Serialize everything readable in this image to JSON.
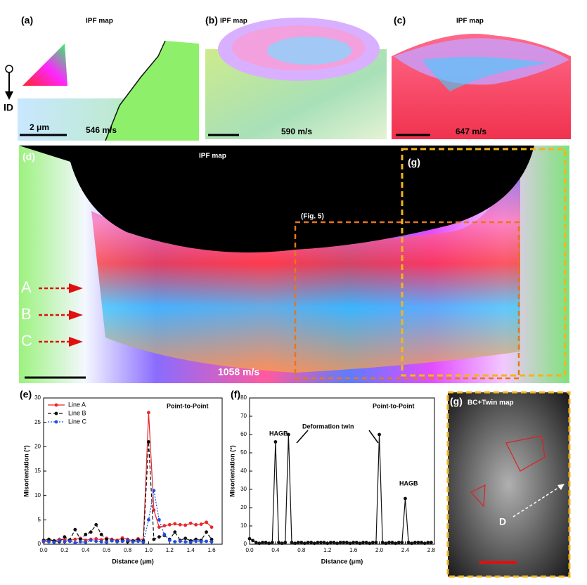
{
  "images": [
    {
      "label": "(a)",
      "title": "IPF map",
      "speed": "546 m/s",
      "scale": "2 μm",
      "direction": "ID"
    },
    {
      "label": "(b)",
      "title": "IPF map",
      "speed": "590 m/s"
    },
    {
      "label": "(c)",
      "title": "IPF map",
      "speed": "647 m/s"
    },
    {
      "label": "(d)",
      "title": "IPF map",
      "speed": "1058 m/s",
      "inset_g": "(g)",
      "inset_fig": "(Fig. 5)",
      "lines": [
        "A",
        "B",
        "C"
      ]
    },
    {
      "label": "(g)",
      "title": "BC+Twin map",
      "line": "D"
    }
  ],
  "chart_data": [
    {
      "type": "line",
      "panel": "(e)",
      "xlabel": "Distance (μm)",
      "ylabel": "Misorientation (°)",
      "annotations": [
        "Point-to-Point"
      ],
      "xlim": [
        0,
        1.7
      ],
      "ylim": [
        0,
        30
      ],
      "xticks": [
        {
          "value": 0,
          "label": "0.0"
        },
        {
          "value": 0.2,
          "label": "0.2"
        },
        {
          "value": 0.4,
          "label": "0.4"
        },
        {
          "value": 0.6,
          "label": "0.6"
        },
        {
          "value": 0.8,
          "label": "0.8"
        },
        {
          "value": 1,
          "label": "1.0"
        },
        {
          "value": 1.2,
          "label": "1.2"
        },
        {
          "value": 1.4,
          "label": "1.4"
        },
        {
          "value": 1.6,
          "label": "1.6"
        }
      ],
      "yticks": [
        0,
        5,
        10,
        15,
        20,
        25,
        30
      ],
      "legend": "upper left",
      "series": [
        {
          "name": "Line A",
          "color": "#e8262b",
          "line_style": "solid",
          "x": [
            0,
            0.05,
            0.1,
            0.15,
            0.2,
            0.25,
            0.3,
            0.35,
            0.4,
            0.45,
            0.5,
            0.55,
            0.6,
            0.65,
            0.7,
            0.75,
            0.8,
            0.85,
            0.9,
            0.95,
            1,
            1.05,
            1.1,
            1.15,
            1.2,
            1.25,
            1.3,
            1.35,
            1.4,
            1.45,
            1.5,
            1.55,
            1.6
          ],
          "values": [
            0.5,
            0.8,
            0.7,
            1,
            0.9,
            0.8,
            1,
            1.2,
            0.8,
            1,
            1.1,
            0.9,
            1.2,
            1,
            0.8,
            1.3,
            1,
            0.7,
            1.1,
            0.9,
            27,
            7,
            3.5,
            3.8,
            4,
            4.2,
            4,
            3.9,
            4.3,
            4,
            4.1,
            4.5,
            3.5
          ]
        },
        {
          "name": "Line B",
          "color": "#111111",
          "line_style": "dashed",
          "x": [
            0,
            0.05,
            0.1,
            0.15,
            0.2,
            0.25,
            0.3,
            0.35,
            0.4,
            0.45,
            0.5,
            0.55,
            0.6,
            0.65,
            0.7,
            0.75,
            0.8,
            0.85,
            0.9,
            0.95,
            1,
            1.05,
            1.1,
            1.15,
            1.2,
            1.25,
            1.3,
            1.35,
            1.4,
            1.45,
            1.5,
            1.55,
            1.6
          ],
          "values": [
            0.8,
            1,
            0.7,
            0.5,
            1.5,
            0.9,
            3,
            1,
            2,
            2.5,
            4,
            2,
            1,
            0.8,
            0.6,
            0.9,
            0.5,
            0.7,
            0.9,
            0.6,
            21,
            1,
            1.5,
            1.8,
            1,
            2.5,
            0.8,
            1.2,
            0.7,
            1,
            0.8,
            2.5,
            1
          ]
        },
        {
          "name": "Line C",
          "color": "#1f4fe0",
          "line_style": "dotted",
          "x": [
            0,
            0.05,
            0.1,
            0.15,
            0.2,
            0.25,
            0.3,
            0.35,
            0.4,
            0.45,
            0.5,
            0.55,
            0.6,
            0.65,
            0.7,
            0.75,
            0.8,
            0.85,
            0.9,
            0.95,
            1,
            1.05,
            1.1,
            1.15,
            1.2,
            1.25,
            1.3,
            1.35,
            1.4,
            1.45,
            1.5,
            1.55,
            1.6
          ],
          "values": [
            0.6,
            0.5,
            0.4,
            0.7,
            0.5,
            0.6,
            0.3,
            0.5,
            0.4,
            0.8,
            0.6,
            0.5,
            0.4,
            0.7,
            0.5,
            0.6,
            0.8,
            0.5,
            0.6,
            0.4,
            5,
            11,
            5,
            2,
            0.8,
            0.5,
            0.6,
            0.5,
            0.4,
            0.6,
            0.5,
            0.6,
            0.5
          ]
        }
      ]
    },
    {
      "type": "line",
      "panel": "(f)",
      "xlabel": "Distance (μm)",
      "ylabel": "Misorientation (°)",
      "annotations": [
        "Point-to-Point",
        "HAGB",
        "Deformation twin",
        "HAGB"
      ],
      "xlim": [
        0,
        2.85
      ],
      "ylim": [
        0,
        80
      ],
      "xticks": [
        {
          "value": 0,
          "label": "0.0"
        },
        {
          "value": 0.4,
          "label": "0.4"
        },
        {
          "value": 0.8,
          "label": "0.8"
        },
        {
          "value": 1.2,
          "label": "1.2"
        },
        {
          "value": 1.6,
          "label": "1.6"
        },
        {
          "value": 2,
          "label": "2.0"
        },
        {
          "value": 2.4,
          "label": "2.4"
        },
        {
          "value": 2.8,
          "label": "2.8"
        }
      ],
      "yticks": [
        0,
        10,
        20,
        30,
        40,
        50,
        60,
        70,
        80
      ],
      "series": [
        {
          "color": "#111111",
          "line_style": "solid",
          "x": [
            0,
            0.05,
            0.1,
            0.15,
            0.2,
            0.25,
            0.3,
            0.35,
            0.4,
            0.45,
            0.5,
            0.55,
            0.6,
            0.65,
            0.7,
            0.75,
            0.8,
            0.85,
            0.9,
            0.95,
            1,
            1.05,
            1.1,
            1.15,
            1.2,
            1.25,
            1.3,
            1.35,
            1.4,
            1.45,
            1.5,
            1.55,
            1.6,
            1.65,
            1.7,
            1.75,
            1.8,
            1.85,
            1.9,
            1.95,
            2,
            2.05,
            2.1,
            2.15,
            2.2,
            2.25,
            2.3,
            2.35,
            2.4,
            2.45,
            2.5,
            2.55,
            2.6,
            2.65,
            2.7,
            2.75,
            2.8
          ],
          "values": [
            3,
            2,
            1,
            0.5,
            1,
            1,
            0.5,
            1,
            56,
            1,
            0.5,
            1,
            60,
            1,
            0.5,
            1,
            1,
            0.5,
            1,
            1,
            0.5,
            1,
            1,
            1,
            0.5,
            1,
            1,
            0.5,
            1,
            1,
            1,
            0.5,
            1,
            1,
            0.5,
            1,
            1,
            0.5,
            1,
            1,
            60,
            1,
            0.5,
            1,
            1,
            0.5,
            1,
            1,
            25,
            1,
            0.5,
            1,
            1,
            1,
            0.5,
            1,
            1
          ]
        }
      ]
    }
  ]
}
